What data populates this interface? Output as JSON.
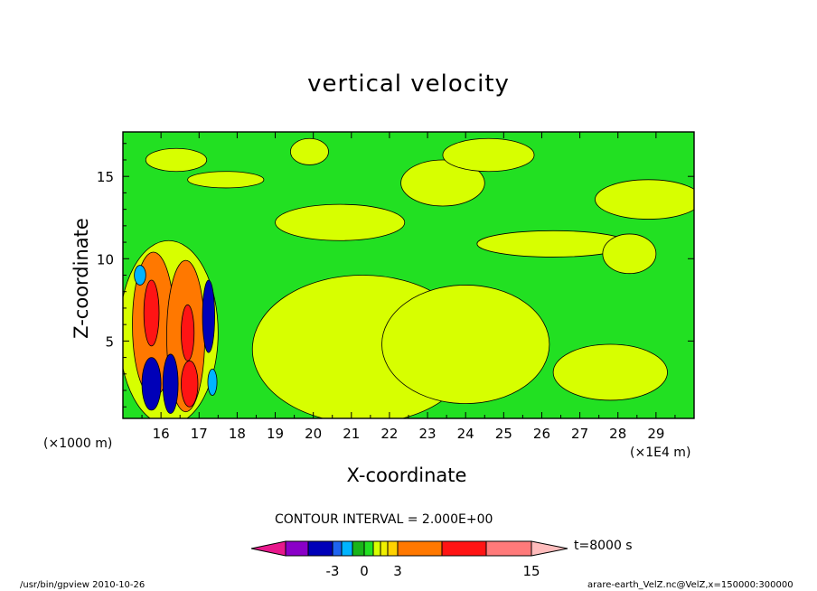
{
  "chart_data": {
    "type": "heatmap",
    "title": "vertical velocity",
    "xlabel": "X-coordinate",
    "ylabel": "Z-coordinate",
    "x_unit_left": "(×1000 m)",
    "x_unit_right": "(×1E4 m)",
    "x_ticks": [
      "16",
      "17",
      "18",
      "19",
      "20",
      "21",
      "22",
      "23",
      "24",
      "25",
      "26",
      "27",
      "28",
      "29"
    ],
    "x_tick_values": [
      16,
      17,
      18,
      19,
      20,
      21,
      22,
      23,
      24,
      25,
      26,
      27,
      28,
      29
    ],
    "xlim": [
      15,
      30
    ],
    "y_ticks": [
      "5",
      "10",
      "15"
    ],
    "y_tick_values": [
      5,
      10,
      15
    ],
    "ylim": [
      0.3,
      17.7
    ],
    "contour_interval_text": "CONTOUR INTERVAL = 2.000E+00",
    "time_label": "t=8000 s",
    "colorbar": {
      "colors": [
        "#e8188c",
        "#8a00c8",
        "#0000b8",
        "#1e64f0",
        "#00b4ff",
        "#19b419",
        "#22e022",
        "#d7ff00",
        "#f0f000",
        "#ffd200",
        "#ff7800",
        "#ff1414",
        "#ff7a7a",
        "#ffbcbc"
      ],
      "tick_labels": [
        "-3",
        "0",
        "3",
        "15"
      ]
    },
    "regions": [
      {
        "level": "yellow",
        "cx": 21.3,
        "cy": 4.5,
        "rx": 2.9,
        "ry": 4.5
      },
      {
        "level": "yellow",
        "cx": 24.0,
        "cy": 4.8,
        "rx": 2.2,
        "ry": 3.6
      },
      {
        "level": "yellow",
        "cx": 27.8,
        "cy": 3.1,
        "rx": 1.5,
        "ry": 1.7
      },
      {
        "level": "yellow",
        "cx": 20.7,
        "cy": 12.2,
        "rx": 1.7,
        "ry": 1.1
      },
      {
        "level": "yellow",
        "cx": 23.4,
        "cy": 14.6,
        "rx": 1.1,
        "ry": 1.4
      },
      {
        "level": "yellow",
        "cx": 26.3,
        "cy": 10.9,
        "rx": 2.0,
        "ry": 0.8
      },
      {
        "level": "yellow",
        "cx": 24.6,
        "cy": 16.3,
        "rx": 1.2,
        "ry": 1.0
      },
      {
        "level": "yellow",
        "cx": 28.8,
        "cy": 13.6,
        "rx": 1.4,
        "ry": 1.2
      },
      {
        "level": "yellow",
        "cx": 28.3,
        "cy": 10.3,
        "rx": 0.7,
        "ry": 1.2
      },
      {
        "level": "yellow",
        "cx": 19.9,
        "cy": 16.5,
        "rx": 0.5,
        "ry": 0.8
      },
      {
        "level": "yellow",
        "cx": 16.4,
        "cy": 16.0,
        "rx": 0.8,
        "ry": 0.7
      },
      {
        "level": "yellow",
        "cx": 17.7,
        "cy": 14.8,
        "rx": 1.0,
        "ry": 0.5
      },
      {
        "level": "yellow",
        "cx": 16.2,
        "cy": 5.5,
        "rx": 1.3,
        "ry": 5.6
      },
      {
        "level": "orange",
        "cx": 15.8,
        "cy": 6.0,
        "rx": 0.55,
        "ry": 4.4
      },
      {
        "level": "orange",
        "cx": 16.65,
        "cy": 5.3,
        "rx": 0.5,
        "ry": 4.6
      },
      {
        "level": "red",
        "cx": 15.75,
        "cy": 6.7,
        "rx": 0.2,
        "ry": 2.0
      },
      {
        "level": "red",
        "cx": 16.7,
        "cy": 5.5,
        "rx": 0.17,
        "ry": 1.7
      },
      {
        "level": "red",
        "cx": 16.75,
        "cy": 2.4,
        "rx": 0.22,
        "ry": 1.4
      },
      {
        "level": "navy",
        "cx": 15.75,
        "cy": 2.4,
        "rx": 0.25,
        "ry": 1.6
      },
      {
        "level": "navy",
        "cx": 16.25,
        "cy": 2.4,
        "rx": 0.2,
        "ry": 1.8
      },
      {
        "level": "navy",
        "cx": 17.25,
        "cy": 6.5,
        "rx": 0.16,
        "ry": 2.2
      },
      {
        "level": "cyan",
        "cx": 15.45,
        "cy": 9.0,
        "rx": 0.15,
        "ry": 0.6
      },
      {
        "level": "cyan",
        "cx": 17.35,
        "cy": 2.5,
        "rx": 0.12,
        "ry": 0.8
      }
    ]
  },
  "footer": {
    "left": "/usr/bin/gpview   2010-10-26",
    "right": "arare-earth_VelZ.nc@VelZ,x=150000:300000"
  }
}
